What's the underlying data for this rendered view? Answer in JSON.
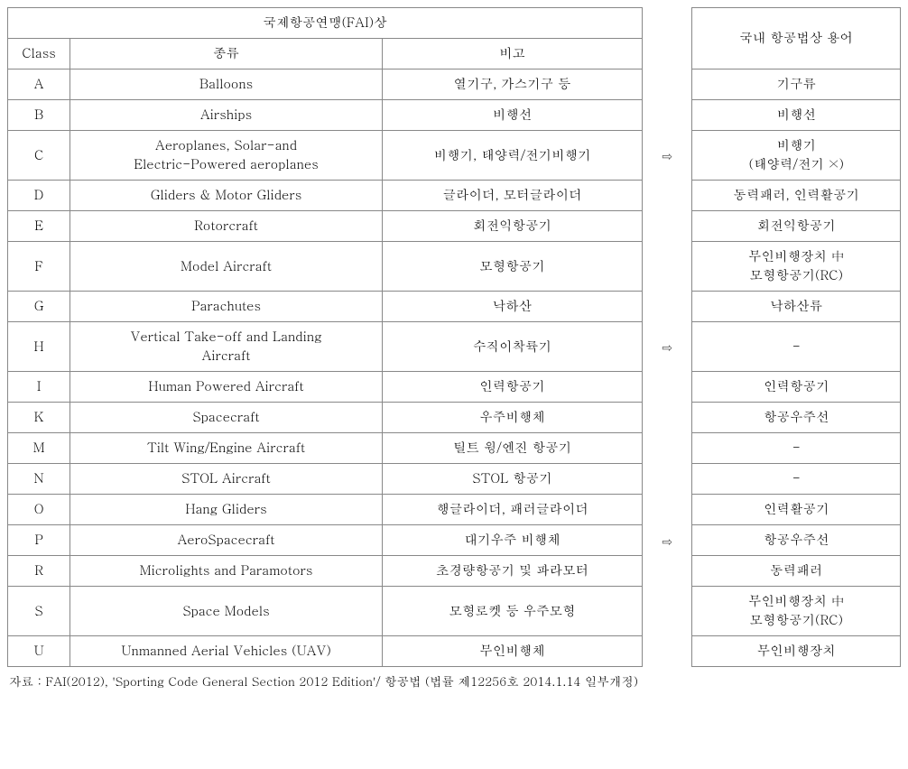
{
  "headers": {
    "fai_title": "국제항공연맹(FAI)상",
    "kr_title": "국내 항공법상 용어",
    "class": "Class",
    "type": "종류",
    "note": "비고"
  },
  "arrow": "⇨",
  "rows": [
    {
      "class": "A",
      "type": "Balloons",
      "note": "열기구, 가스기구 등",
      "kr": "기구류"
    },
    {
      "class": "B",
      "type": "Airships",
      "note": "비행선",
      "kr": "비행선"
    },
    {
      "class": "C",
      "type": "Aeroplanes, Solar-and\nElectric-Powered aeroplanes",
      "note": "비행기, 태양력/전기비행기",
      "kr": "비행기\n(태양력/전기 ×)"
    },
    {
      "class": "D",
      "type": "Gliders & Motor Gliders",
      "note": "글라이더, 모터글라이더",
      "kr": "동력패러, 인력활공기"
    },
    {
      "class": "E",
      "type": "Rotorcraft",
      "note": "회전익항공기",
      "kr": "회전익항공기"
    },
    {
      "class": "F",
      "type": "Model Aircraft",
      "note": "모형항공기",
      "kr": "무인비행장치 中\n모형항공기(RC)"
    },
    {
      "class": "G",
      "type": "Parachutes",
      "note": "낙하산",
      "kr": "낙하산류"
    },
    {
      "class": "H",
      "type": "Vertical Take-off and Landing\nAircraft",
      "note": "수직이착륙기",
      "kr": "-"
    },
    {
      "class": "I",
      "type": "Human Powered Aircraft",
      "note": "인력항공기",
      "kr": "인력항공기"
    },
    {
      "class": "K",
      "type": "Spacecraft",
      "note": "우주비행체",
      "kr": "항공우주선"
    },
    {
      "class": "M",
      "type": "Tilt Wing/Engine Aircraft",
      "note": "틸트 윙/엔진 항공기",
      "kr": "-"
    },
    {
      "class": "N",
      "type": "STOL Aircraft",
      "note": "STOL 항공기",
      "kr": "-"
    },
    {
      "class": "O",
      "type": "Hang Gliders",
      "note": "행글라이더, 패러글라이더",
      "kr": "인력활공기"
    },
    {
      "class": "P",
      "type": "AeroSpacecraft",
      "note": "대기우주 비행체",
      "kr": "항공우주선"
    },
    {
      "class": "R",
      "type": "Microlights and Paramotors",
      "note": "초경량항공기 및 파라모터",
      "kr": "동력패러"
    },
    {
      "class": "S",
      "type": "Space Models",
      "note": "모형로켓 등 우주모형",
      "kr": "무인비행장치 中\n모형항공기(RC)"
    },
    {
      "class": "U",
      "type": "Unmanned Aerial Vehicles (UAV)",
      "note": "무인비행체",
      "kr": "무인비행장치"
    }
  ],
  "arrow_spans": [
    {
      "show_arrow": false,
      "span": 2
    },
    {
      "show_arrow": true,
      "span": 1
    },
    {
      "show_arrow": false,
      "span": 4
    },
    {
      "show_arrow": true,
      "span": 1
    },
    {
      "show_arrow": false,
      "span": 5
    },
    {
      "show_arrow": true,
      "span": 1
    },
    {
      "show_arrow": false,
      "span": 3
    }
  ],
  "source": "자료 : FAI(2012), 'Sporting Code General Section 2012 Edition'/ 항공법 (법률 제12256호 2014.1.14 일부개정)",
  "style": {
    "border_color": "#888888",
    "background_color": "#ffffff",
    "text_color": "#000000",
    "arrow_color": "#555555",
    "cell_fontsize": 14.5,
    "source_fontsize": 13.5
  }
}
